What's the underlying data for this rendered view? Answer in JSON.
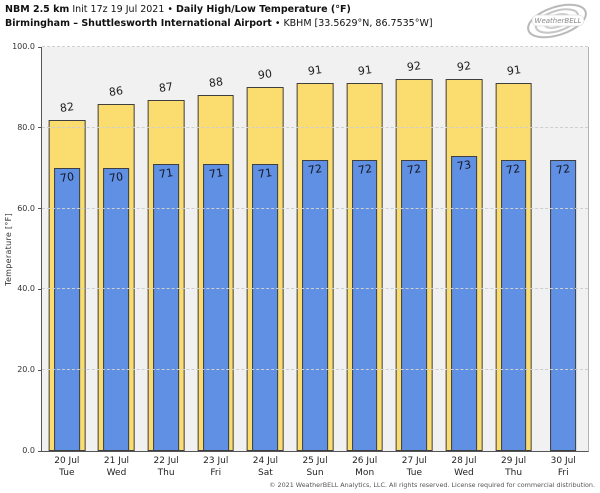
{
  "header": {
    "title_bold_1": "NBM 2.5 km",
    "title_regular_1": " Init 17z 19 Jul 2021 • ",
    "title_bold_2": "Daily High/Low Temperature (°F)",
    "subtitle_bold": "Birmingham – Shuttlesworth International Airport",
    "subtitle_regular": " • KBHM [33.5629°N, 86.7535°W]",
    "logo_text": "WeatherBELL"
  },
  "chart_data": {
    "type": "bar",
    "title": "NBM 2.5 km Init 17z 19 Jul 2021 • Daily High/Low Temperature (°F)",
    "subtitle": "Birmingham – Shuttlesworth International Airport • KBHM [33.5629°N, 86.7535°W]",
    "ylabel": "Temperature [°F]",
    "xlabel": "",
    "ylim": [
      0,
      100
    ],
    "yticks": [
      0,
      20,
      40,
      60,
      80,
      100
    ],
    "ytick_labels": [
      "0.0",
      "20.0",
      "40.0",
      "60.0",
      "80.0",
      "100.0"
    ],
    "grid": "horizontal-dashed",
    "legend_position": "none",
    "categories": [
      {
        "date": "20 Jul",
        "day": "Tue"
      },
      {
        "date": "21 Jul",
        "day": "Wed"
      },
      {
        "date": "22 Jul",
        "day": "Thu"
      },
      {
        "date": "23 Jul",
        "day": "Fri"
      },
      {
        "date": "24 Jul",
        "day": "Sat"
      },
      {
        "date": "25 Jul",
        "day": "Sun"
      },
      {
        "date": "26 Jul",
        "day": "Mon"
      },
      {
        "date": "27 Jul",
        "day": "Tue"
      },
      {
        "date": "28 Jul",
        "day": "Wed"
      },
      {
        "date": "29 Jul",
        "day": "Thu"
      },
      {
        "date": "30 Jul",
        "day": "Fri"
      }
    ],
    "series": [
      {
        "name": "Daily High",
        "color": "#fadd6e",
        "border_color": "#3f3f3f",
        "values": [
          82,
          86,
          87,
          88,
          90,
          91,
          91,
          92,
          92,
          91,
          null
        ]
      },
      {
        "name": "Daily Low",
        "color": "#6090e4",
        "border_color": "#3f3f3f",
        "values": [
          70,
          70,
          71,
          71,
          71,
          72,
          72,
          72,
          73,
          72,
          72
        ]
      }
    ],
    "plot_background": "#f1f1f1",
    "figure_background": "#ffffff"
  },
  "footer": {
    "copyright": "© 2021 WeatherBELL Analytics, LLC. All rights reserved. License required for commercial distribution."
  }
}
